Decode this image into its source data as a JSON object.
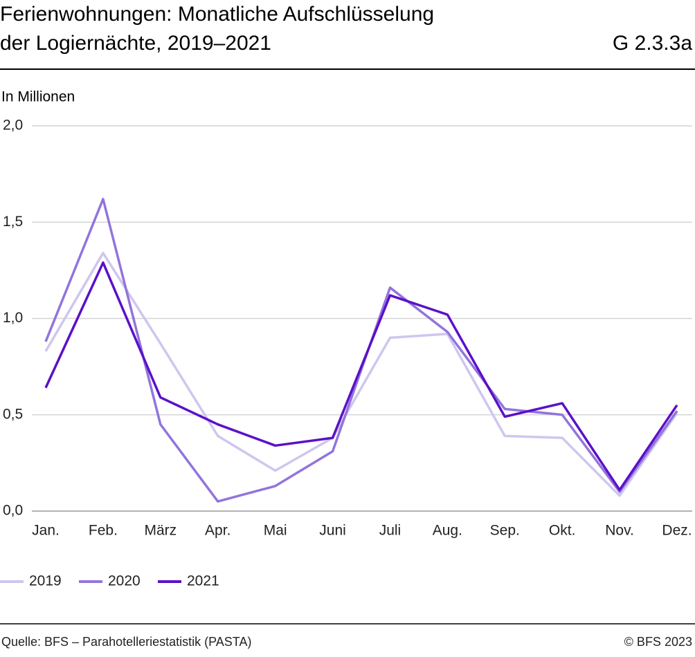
{
  "chart_data": {
    "type": "line",
    "title": [
      "Ferienwohnungen: Monatliche Aufschlüsselung",
      "der Logiernächte, 2019–2021"
    ],
    "chart_id": "G 2.3.3a",
    "y_label": "In Millionen",
    "categories": [
      "Jan.",
      "Feb.",
      "März",
      "Apr.",
      "Mai",
      "Juni",
      "Juli",
      "Aug.",
      "Sep.",
      "Okt.",
      "Nov.",
      "Dez."
    ],
    "series": [
      {
        "name": "2019",
        "color": "#cfc6ef",
        "values": [
          0.83,
          1.34,
          0.87,
          0.39,
          0.21,
          0.38,
          0.9,
          0.92,
          0.39,
          0.38,
          0.08,
          0.51
        ]
      },
      {
        "name": "2020",
        "color": "#9274dc",
        "values": [
          0.88,
          1.62,
          0.45,
          0.05,
          0.13,
          0.31,
          1.16,
          0.93,
          0.53,
          0.5,
          0.1,
          0.52
        ]
      },
      {
        "name": "2021",
        "color": "#5b10c8",
        "values": [
          0.64,
          1.29,
          0.59,
          0.45,
          0.34,
          0.38,
          1.12,
          1.02,
          0.49,
          0.56,
          0.11,
          0.55
        ]
      }
    ],
    "ylim": [
      0,
      2
    ],
    "yticks": [
      {
        "value": 0,
        "label": "0,0"
      },
      {
        "value": 0.5,
        "label": "0,5"
      },
      {
        "value": 1,
        "label": "1,0"
      },
      {
        "value": 1.5,
        "label": "1,5"
      },
      {
        "value": 2,
        "label": "2,0"
      }
    ],
    "grid": true,
    "source": "Quelle: BFS – Parahotelleriestatistik (PASTA)",
    "copyright": "© BFS 2023"
  }
}
